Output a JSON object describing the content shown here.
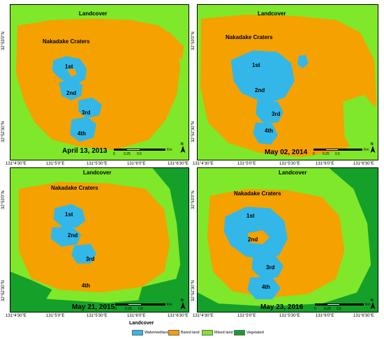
{
  "colors": {
    "water": "#33b7e8",
    "bared": "#f5a100",
    "mixed": "#7fe82a",
    "vegetated": "#15a02a"
  },
  "panels": [
    {
      "landcover_title": "Landcover",
      "craters_title": "Nakadake Craters",
      "craters": [
        "1st",
        "2nd",
        "3rd",
        "4th"
      ],
      "date": "April 13, 2013",
      "scale_labels": [
        "0",
        "0.25",
        "0.5",
        "Km"
      ],
      "north": "N",
      "y_ticks": [
        "32°53'0\"N",
        "32°52'30\"N"
      ],
      "x_ticks": []
    },
    {
      "landcover_title": "Landcover",
      "craters_title": "Nakadake Craters",
      "craters": [
        "1st",
        "2nd",
        "3rd",
        "4th"
      ],
      "date": "May 02, 2014",
      "scale_labels": [
        "0",
        "0.25",
        "0.5",
        "Km"
      ],
      "north": "N",
      "y_ticks": [
        "32°53'0\"N",
        "32°52'30\"N"
      ],
      "x_ticks": [
        "131°4'30\"E",
        "131°5'0\"E",
        "131°5'30\"E",
        "131°6'0\"E",
        "131°6'30\"E"
      ]
    },
    {
      "landcover_title": "Landcover",
      "craters_title": "Nakadake Craters",
      "craters": [
        "1st",
        "2nd",
        "3rd",
        "4th"
      ],
      "date": "May 21, 2015",
      "scale_labels": [
        "0",
        "0.25",
        "0.5",
        "Km"
      ],
      "north": "N",
      "y_ticks": [
        "32°53'0\"N",
        "32°52'30\"N"
      ],
      "x_ticks": [
        "131°4'30\"E",
        "131°5'0\"E",
        "131°5'30\"E",
        "131°6'0\"E",
        "131°6'30\"E"
      ]
    },
    {
      "landcover_title": "Landcover",
      "craters_title": "Nakadake Craters",
      "craters": [
        "1st",
        "2nd",
        "3rd",
        "4th"
      ],
      "date": "May 23, 2016",
      "scale_labels": [
        "0",
        "0.25",
        "0.5",
        "Km"
      ],
      "north": "N",
      "y_ticks": [
        "32°53'0\"N",
        "32°52'30\"N"
      ],
      "x_ticks": [
        "131°4'30\"E",
        "131°5'0\"E",
        "131°5'30\"E",
        "131°6'0\"E",
        "131°6'30\"E"
      ]
    }
  ],
  "top_x_ticks": [
    "131°4'30\"E",
    "131°5'0\"E",
    "131°5'30\"E",
    "131°6'0\"E",
    "131°6'30\"E"
  ],
  "legend": {
    "title": "Landcover",
    "items": [
      "Water/wetland",
      "Bared land",
      "Mixed land",
      "Vegetated"
    ]
  }
}
